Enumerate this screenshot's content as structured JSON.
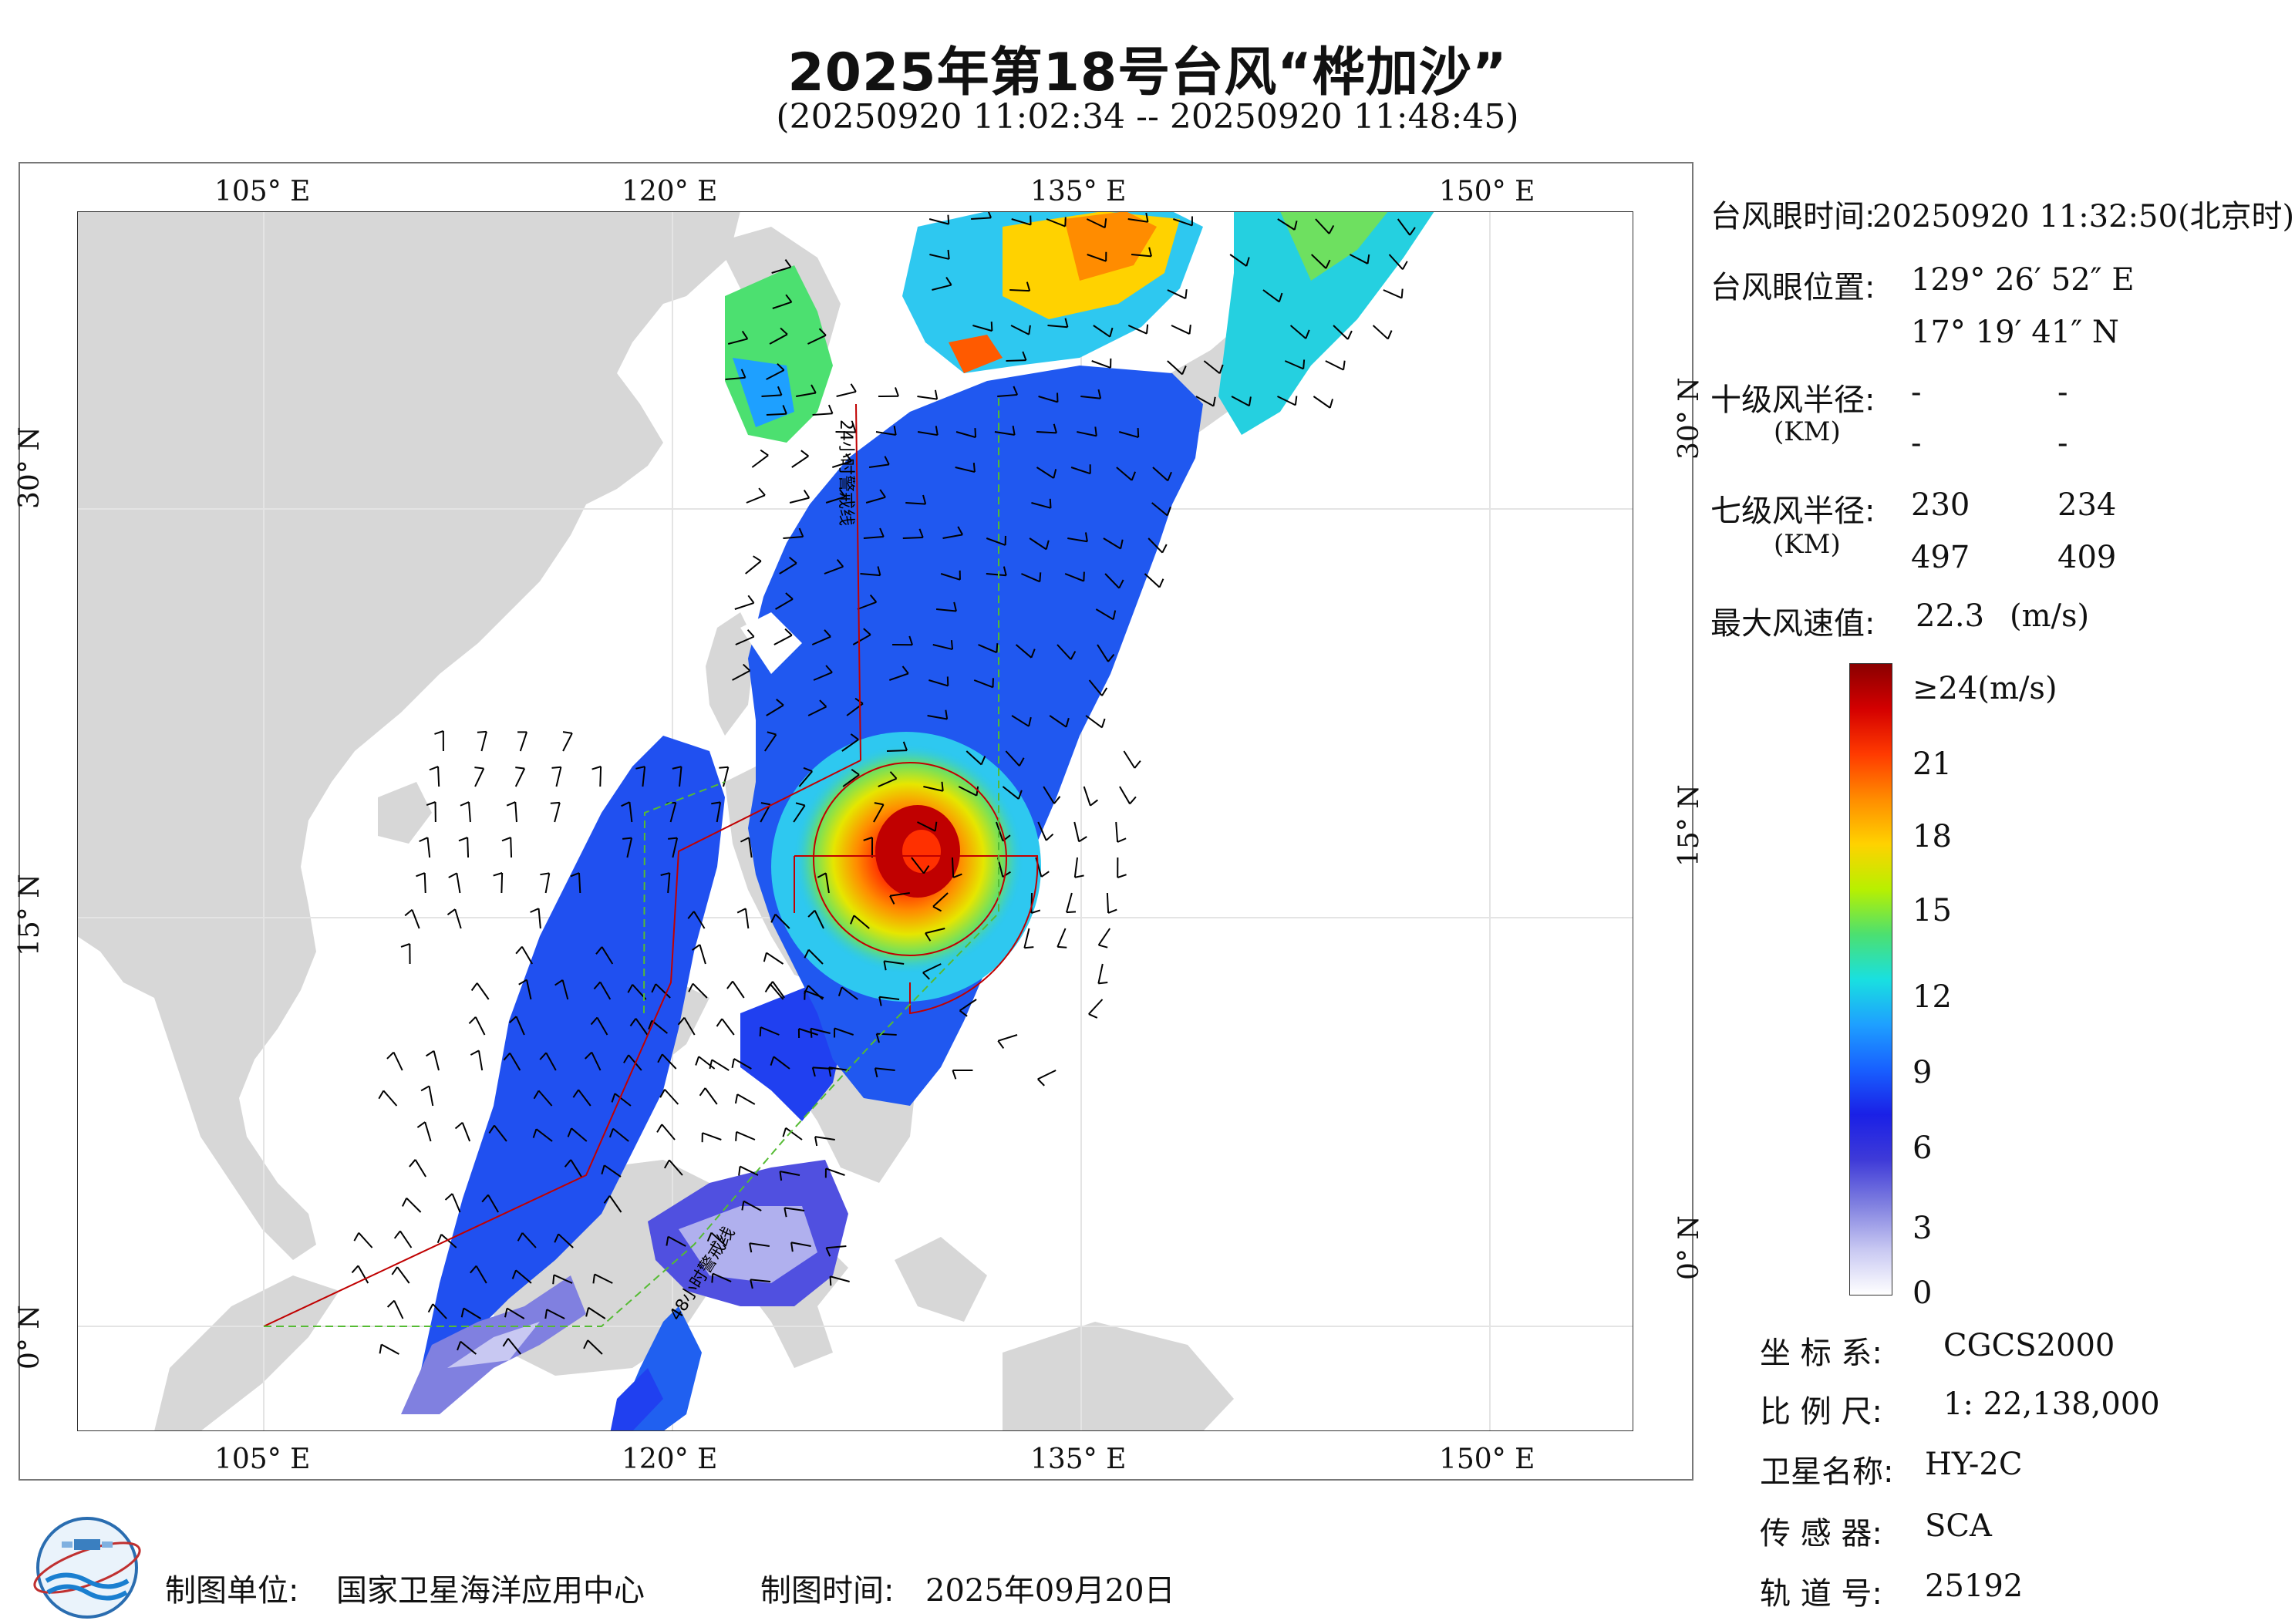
{
  "header": {
    "title": "2025年第18号台风“桦加沙”",
    "subtitle": "(20250920 11:02:34 -- 20250920 11:48:45)"
  },
  "map": {
    "lon_labels": [
      "105° E",
      "120° E",
      "135° E",
      "150° E"
    ],
    "lat_labels": [
      "30° N",
      "15° N",
      "0° N"
    ],
    "track_label_24h": "24小时警戒线",
    "track_label_48h": "48小时警戒线",
    "colors": {
      "land": "#d7d7d7",
      "sea": "#ffffff",
      "radius_circle": "#c00000",
      "track_24h": "#c00000",
      "track_48h": "#55bb33"
    }
  },
  "typhoon_info": {
    "eye_time_label": "台风眼时间:",
    "eye_time_value": "20250920 11:32:50(北京时)",
    "eye_position_label": "台风眼位置:",
    "eye_lon": "129° 26′ 52″ E",
    "eye_lat": "17° 19′ 41″ N",
    "r10_label": "十级风半径:",
    "r10_unit": "(KM)",
    "r10_values": [
      "-",
      "-",
      "-",
      "-"
    ],
    "r7_label": "七级风半径:",
    "r7_unit": "(KM)",
    "r7_values": [
      "230",
      "234",
      "497",
      "409"
    ],
    "max_wind_label": "最大风速值:",
    "max_wind_value": "22.3",
    "max_wind_unit": "(m/s)"
  },
  "colorbar": {
    "labels": [
      "≥24(m/s)",
      "21",
      "18",
      "15",
      "12",
      "9",
      "6",
      "3",
      "0"
    ],
    "stops": [
      "#8a0000",
      "#d40000",
      "#ff3a00",
      "#ff8c00",
      "#ffd200",
      "#b8f000",
      "#4ce070",
      "#19e0e0",
      "#1ea0ff",
      "#1860ff",
      "#1a20e6",
      "#3e3ad8",
      "#8080e0",
      "#c8c8f2",
      "#ffffff"
    ]
  },
  "map_meta": {
    "crs_label": "坐 标 系:",
    "crs_value": "CGCS2000",
    "scale_label": "比 例 尺:",
    "scale_value": "1: 22,138,000",
    "satellite_label": "卫星名称:",
    "satellite_value": "HY-2C",
    "sensor_label": "传 感 器:",
    "sensor_value": "SCA",
    "orbit_label": "轨 道 号:",
    "orbit_value": "25192"
  },
  "footer": {
    "producer_label": "制图单位:",
    "producer_value": "国家卫星海洋应用中心",
    "date_label": "制图时间:",
    "date_value": "2025年09月20日"
  }
}
